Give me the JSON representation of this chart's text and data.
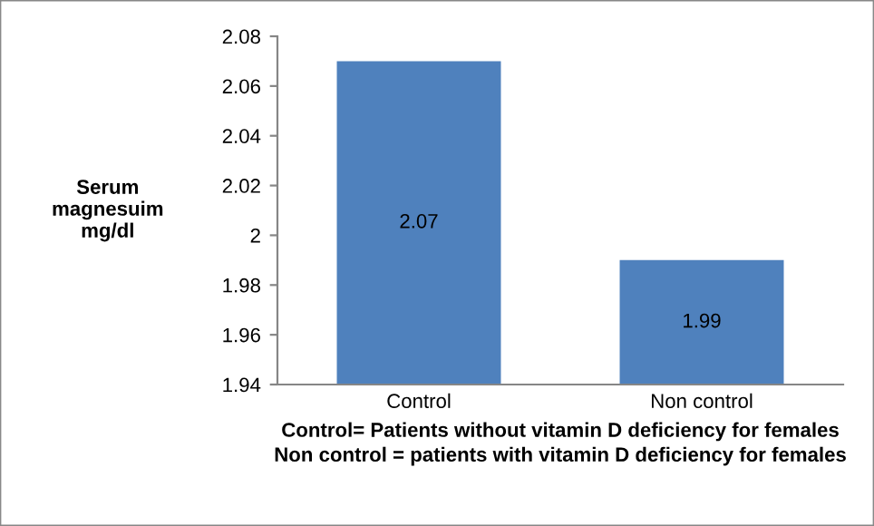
{
  "chart_data": {
    "type": "bar",
    "categories": [
      "Control",
      "Non control"
    ],
    "values": [
      2.07,
      1.99
    ],
    "color": "#4f81bd",
    "ylabel": "Serum\nmagnesuim\nmg/dl",
    "xlabel": "Control= Patients without vitamin D deficiency for females\nNon control = patients with vitamin D deficiency for females",
    "ylim": [
      1.94,
      2.08
    ],
    "yticks": [
      1.94,
      1.96,
      1.98,
      2,
      2.02,
      2.04,
      2.06,
      2.08
    ],
    "data_labels": true,
    "grid": false,
    "legend": false
  }
}
